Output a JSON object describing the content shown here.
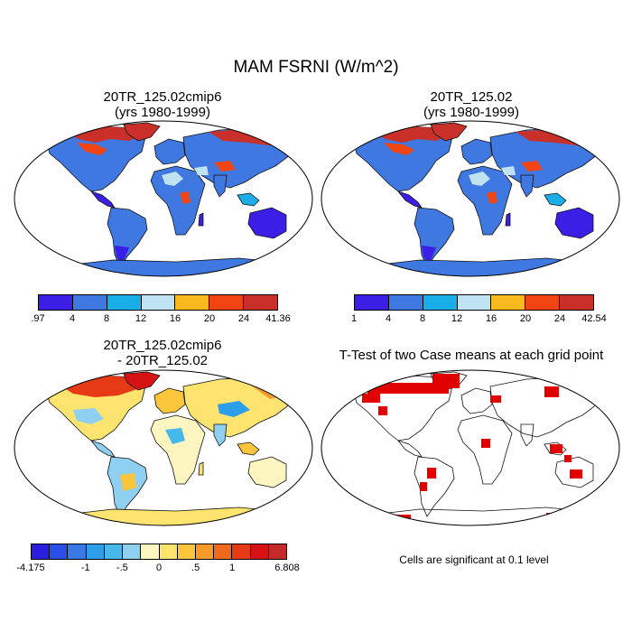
{
  "title": "MAM FSRNI (W/m^2)",
  "panels": {
    "case1": {
      "line1": "20TR_125.02cmip6",
      "line2": "(yrs 1980-1999)"
    },
    "case2": {
      "line1": "20TR_125.02",
      "line2": "(yrs 1980-1999)"
    },
    "diff": {
      "line1": "20TR_125.02cmip6",
      "line2": "- 20TR_125.02"
    },
    "ttest": {
      "line1": "T-Test of two Case means at each grid point"
    }
  },
  "colorbar1": {
    "colors": [
      "#3b1fe6",
      "#3f78e0",
      "#1aaee9",
      "#bfe3f2",
      "#f7b91e",
      "#f04513",
      "#c9302a"
    ],
    "labels": [
      ".97",
      "4",
      "8",
      "12",
      "16",
      "20",
      "24",
      "41.36"
    ]
  },
  "colorbar2": {
    "colors": [
      "#3b1fe6",
      "#3f78e0",
      "#1aaee9",
      "#bfe3f2",
      "#f7b91e",
      "#f04513",
      "#c9302a"
    ],
    "labels": [
      "1",
      "4",
      "8",
      "12",
      "16",
      "20",
      "24",
      "42.54"
    ]
  },
  "colorbar3": {
    "colors": [
      "#2a1fe0",
      "#2a4fe6",
      "#3a78e4",
      "#2d9ee8",
      "#47b8ea",
      "#8fd0f0",
      "#fdf6c0",
      "#fce46e",
      "#fbc63c",
      "#f69a28",
      "#f06a1e",
      "#e63a17",
      "#d61212",
      "#c52a2a"
    ],
    "labels": [
      {
        "text": "-4.175",
        "pos": 0
      },
      {
        "text": "-1",
        "pos": 0.214
      },
      {
        "text": "-.5",
        "pos": 0.357
      },
      {
        "text": "0",
        "pos": 0.5
      },
      {
        "text": ".5",
        "pos": 0.643
      },
      {
        "text": "1",
        "pos": 0.786
      },
      {
        "text": "6.808",
        "pos": 1
      }
    ]
  },
  "note": "Cells are significant at 0.1 level"
}
